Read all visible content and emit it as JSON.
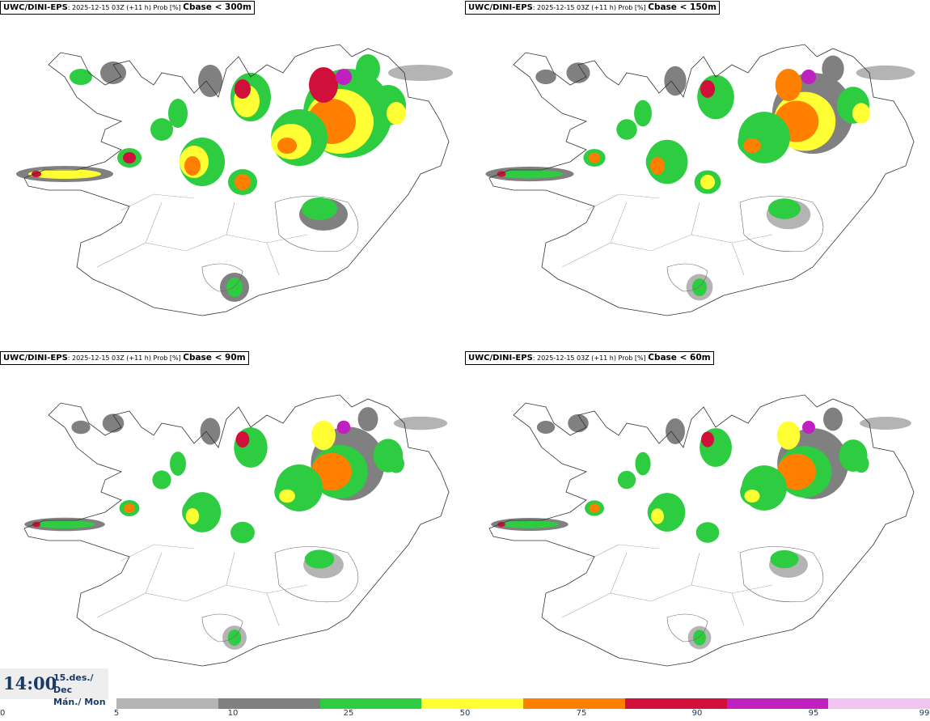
{
  "panels": [
    {
      "model": "UWC/DINI-EPS",
      "meta": ": 2025-12-15 03Z (+11 h) Prob [%] ",
      "threshold": "Cbase < 300m",
      "intensity": 1.0
    },
    {
      "model": "UWC/DINI-EPS",
      "meta": ": 2025-12-15 03Z (+11 h) Prob [%] ",
      "threshold": "Cbase < 150m",
      "intensity": 0.8
    },
    {
      "model": "UWC/DINI-EPS",
      "meta": ": 2025-12-15 03Z (+11 h) Prob [%] ",
      "threshold": "Cbase < 90m",
      "intensity": 0.62
    },
    {
      "model": "UWC/DINI-EPS",
      "meta": ": 2025-12-15 03Z (+11 h) Prob [%] ",
      "threshold": "Cbase < 60m",
      "intensity": 0.55
    }
  ],
  "time": {
    "clock": "14:00",
    "date_line": "15.des./ Dec",
    "day_line": "Mán./ Mon"
  },
  "legend": {
    "labels": [
      "0",
      "5",
      "10",
      "25",
      "50",
      "75",
      "90",
      "95",
      "99"
    ],
    "colors": [
      "#b4b4b4",
      "#808080",
      "#2ecc40",
      "#ffff33",
      "#ff7f00",
      "#d0103a",
      "#c020c0",
      "#f2c4f2"
    ]
  }
}
